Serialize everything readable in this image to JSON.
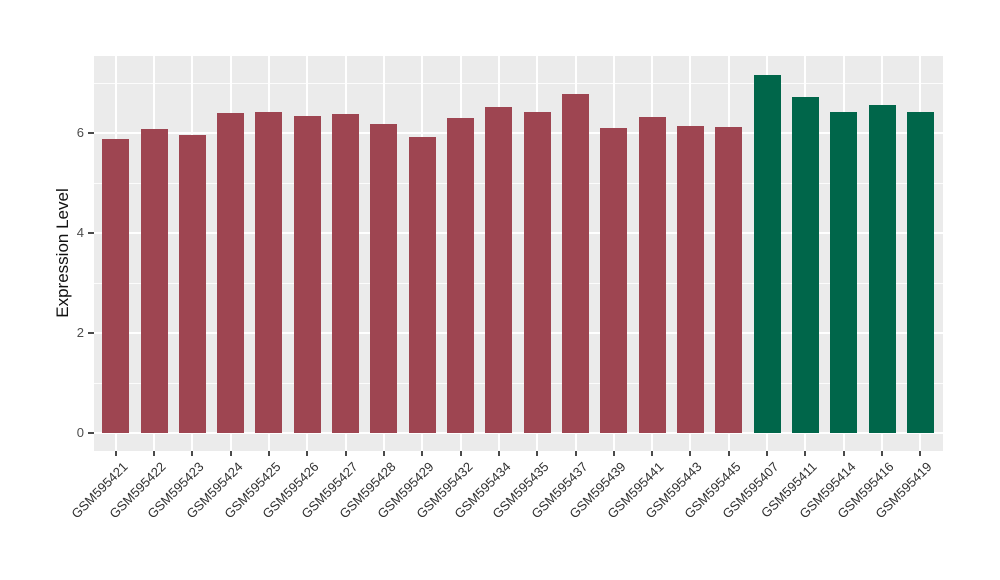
{
  "chart_data": {
    "type": "bar",
    "title": "",
    "xlabel": "",
    "ylabel": "Expression Level",
    "ylim": [
      0,
      7.5
    ],
    "grid": "on",
    "legend": "none",
    "panel_bg_color": "#EBEBEB",
    "grid_color": "#FFFFFF",
    "axis_text_color": "#4D4D4D",
    "y_major_ticks": [
      0,
      2,
      4,
      6
    ],
    "y_major_tick_labels": [
      "0",
      "2",
      "4",
      "6"
    ],
    "y_minor_ticks": [
      1,
      3,
      5,
      7
    ],
    "categories": [
      "GSM595421",
      "GSM595422",
      "GSM595423",
      "GSM595424",
      "GSM595425",
      "GSM595426",
      "GSM595427",
      "GSM595428",
      "GSM595429",
      "GSM595432",
      "GSM595434",
      "GSM595435",
      "GSM595437",
      "GSM595439",
      "GSM595441",
      "GSM595443",
      "GSM595445",
      "GSM595407",
      "GSM595411",
      "GSM595414",
      "GSM595416",
      "GSM595419"
    ],
    "values": [
      5.88,
      6.08,
      5.96,
      6.4,
      6.42,
      6.34,
      6.38,
      6.18,
      5.92,
      6.3,
      6.52,
      6.42,
      6.78,
      6.1,
      6.32,
      6.14,
      6.12,
      7.16,
      6.72,
      6.42,
      6.56,
      6.42
    ],
    "bar_groups": [
      "red",
      "red",
      "red",
      "red",
      "red",
      "red",
      "red",
      "red",
      "red",
      "red",
      "red",
      "red",
      "red",
      "red",
      "red",
      "red",
      "red",
      "green",
      "green",
      "green",
      "green",
      "green"
    ],
    "group_colors": {
      "red": "#9E4551",
      "green": "#00664A"
    }
  }
}
